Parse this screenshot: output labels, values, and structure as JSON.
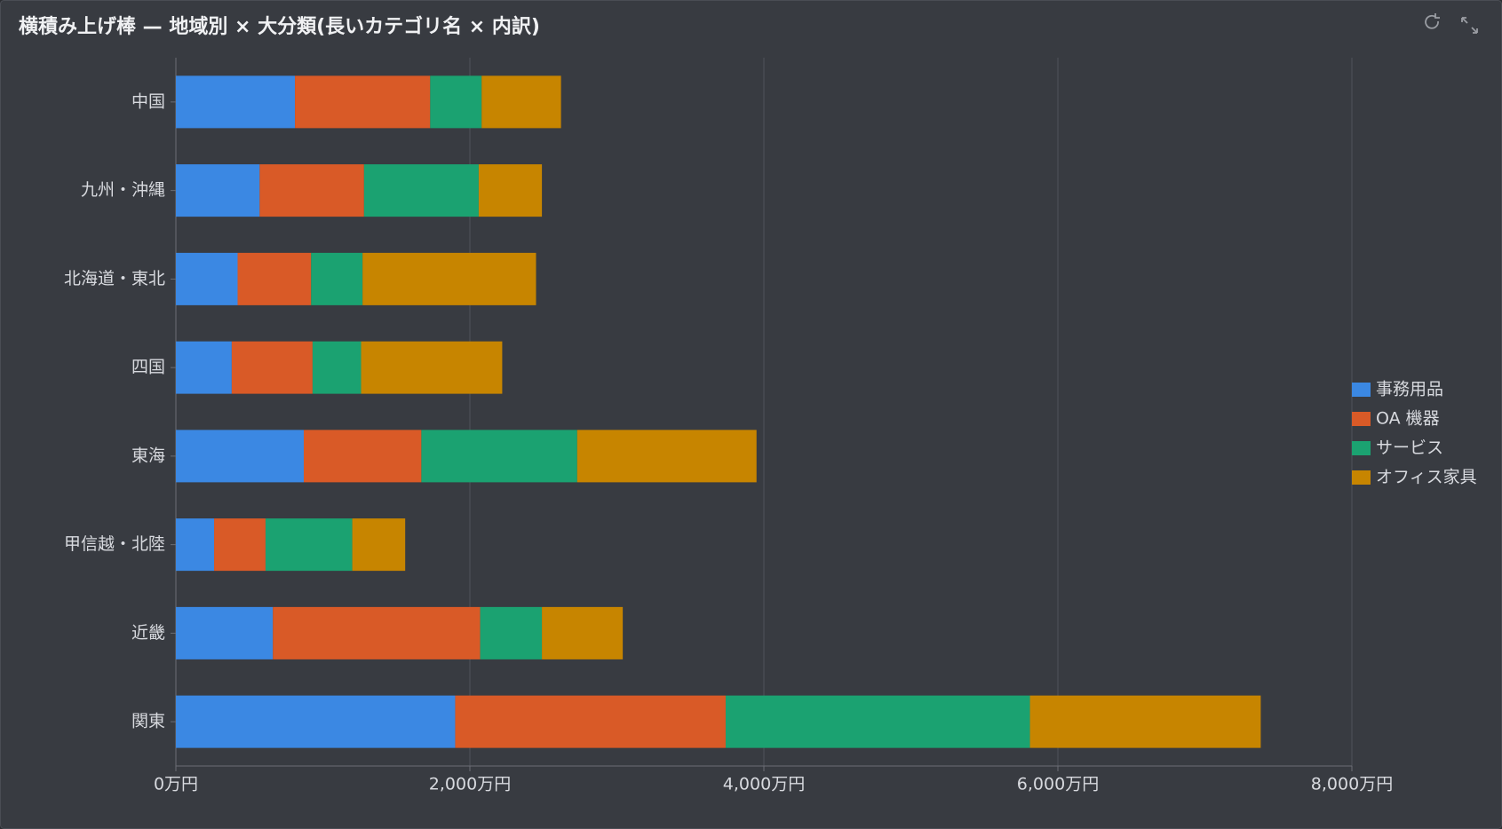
{
  "chart_data": {
    "type": "hbar_stacked",
    "title": "横積み上げ棒 — 地域別 × 大分類(長いカテゴリ名 × 内訳)",
    "categories": [
      "中国",
      "九州・沖縄",
      "北海道・東北",
      "四国",
      "東海",
      "甲信越・北陸",
      "近畿",
      "関東"
    ],
    "series": [
      {
        "name": "事務用品",
        "color": "#3b88e3",
        "values": [
          810,
          570,
          420,
          380,
          870,
          260,
          660,
          1900
        ]
      },
      {
        "name": "OA 機器",
        "color": "#d95a27",
        "values": [
          920,
          710,
          500,
          550,
          800,
          350,
          1410,
          1840
        ]
      },
      {
        "name": "サービス",
        "color": "#1ba271",
        "values": [
          350,
          780,
          350,
          330,
          1060,
          590,
          420,
          2070
        ]
      },
      {
        "name": "オフィス家具",
        "color": "#c78500",
        "values": [
          540,
          430,
          1180,
          960,
          1220,
          360,
          550,
          1570
        ]
      }
    ],
    "xlim": [
      0,
      8000
    ],
    "xticks": [
      {
        "value": 0,
        "label": "0万円"
      },
      {
        "value": 2000,
        "label": "2,000万円"
      },
      {
        "value": 4000,
        "label": "4,000万円"
      },
      {
        "value": 6000,
        "label": "6,000万円"
      },
      {
        "value": 8000,
        "label": "8,000万円"
      }
    ],
    "grid": true,
    "legend": "right"
  }
}
